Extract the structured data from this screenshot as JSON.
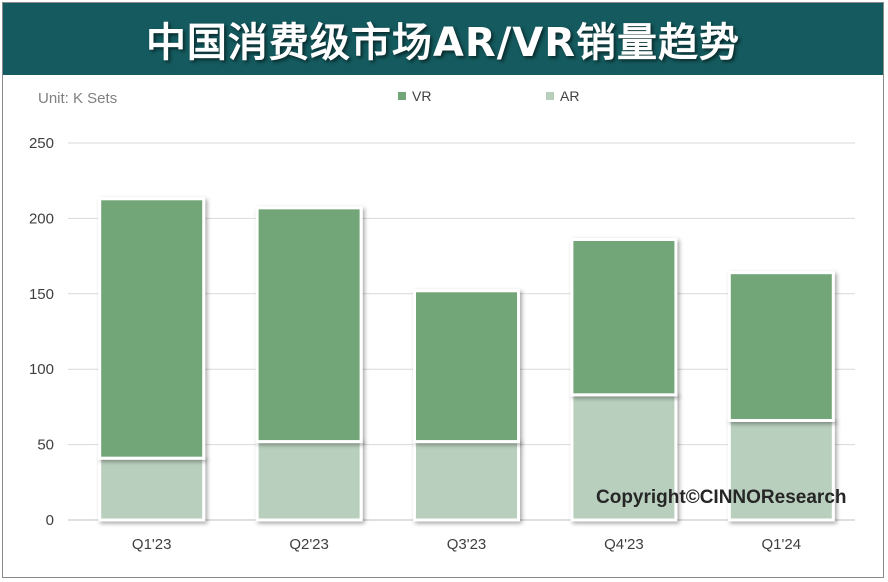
{
  "title": "中国消费级市场AR/VR销量趋势",
  "unit_label": "Unit:  K Sets",
  "copyright": "Copyright©CINNOResearch",
  "colors": {
    "title_bg": "#145a5e",
    "vr": "#72a577",
    "ar": "#b9cfbe"
  },
  "chart_data": {
    "type": "bar",
    "stacked": true,
    "categories": [
      "Q1'23",
      "Q2'23",
      "Q3'23",
      "Q4'23",
      "Q1'24"
    ],
    "series": [
      {
        "name": "AR",
        "values": [
          41,
          52,
          52,
          83,
          66
        ]
      },
      {
        "name": "VR",
        "values": [
          172,
          155,
          100,
          103,
          98
        ]
      }
    ],
    "ylim": [
      0,
      250
    ],
    "yticks": [
      0,
      50,
      100,
      150,
      200,
      250
    ],
    "grid": true,
    "legend": "top"
  }
}
